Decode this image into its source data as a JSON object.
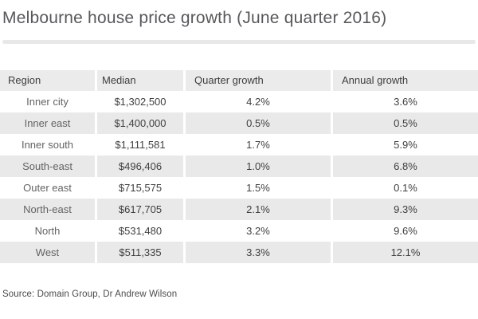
{
  "title": "Melbourne house price growth (June quarter 2016)",
  "source_note": "Source: Domain Group, Dr Andrew Wilson",
  "colors": {
    "header_bg": "#ebebeb",
    "stripe_bg": "#e9e9e9",
    "divider": "#e8e8e8",
    "title_text": "#57585b",
    "cell_text": "#3f3f41",
    "region_text": "#636363"
  },
  "chart_data": {
    "type": "table",
    "title": "Melbourne house price growth (June quarter 2016)",
    "columns": [
      "Region",
      "Median",
      "Quarter growth",
      "Annual growth"
    ],
    "rows": [
      [
        "Inner city",
        "$1,302,500",
        "4.2%",
        "3.6%"
      ],
      [
        "Inner east",
        "$1,400,000",
        "0.5%",
        "0.5%"
      ],
      [
        "Inner south",
        "$1,111,581",
        "1.7%",
        "5.9%"
      ],
      [
        "South-east",
        "$496,406",
        "1.0%",
        "6.8%"
      ],
      [
        "Outer east",
        "$715,575",
        "1.5%",
        "0.1%"
      ],
      [
        "North-east",
        "$617,705",
        "2.1%",
        "9.3%"
      ],
      [
        "North",
        "$531,480",
        "3.2%",
        "9.6%"
      ],
      [
        "West",
        "$511,335",
        "3.3%",
        "12.1%"
      ]
    ],
    "source": "Source: Domain Group, Dr Andrew Wilson"
  }
}
